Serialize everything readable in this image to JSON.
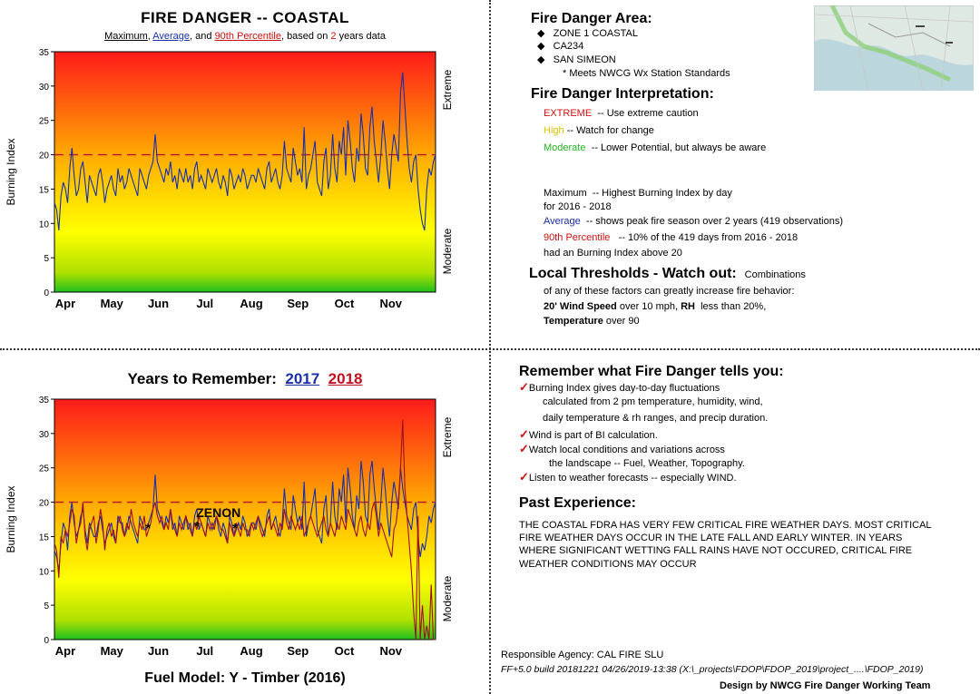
{
  "top_chart": {
    "title": "FIRE DANGER -- COASTAL",
    "subtitle_parts": [
      "Maximum",
      ", ",
      "Average",
      ", and ",
      "90th Percentile",
      ", based on ",
      "2",
      " years data"
    ],
    "ylabel": "Burning Index",
    "right_label_top": "Extreme",
    "right_label_bottom": "Moderate"
  },
  "bottom_chart": {
    "title": "Years to Remember:",
    "year1": "2017",
    "year2": "2018",
    "ylabel": "Burning Index",
    "right_label_top": "Extreme",
    "right_label_bottom": "Moderate",
    "annotation": "ZENON",
    "footer": "Fuel Model: Y - Timber (2016)"
  },
  "chart_data": [
    {
      "type": "line",
      "ylim": [
        0,
        35
      ],
      "yticks": [
        "0",
        "5",
        "10",
        "15",
        "20",
        "25",
        "30",
        "35"
      ],
      "months": [
        "Apr",
        "May",
        "Jun",
        "Jul",
        "Aug",
        "Sep",
        "Oct",
        "Nov"
      ],
      "threshold": 20,
      "series": [
        {
          "name": "Average",
          "color": "#1a2fa8",
          "values": [
            13,
            12,
            9,
            14,
            16,
            15,
            13,
            18,
            21,
            17,
            14,
            15,
            18,
            19,
            16,
            13,
            17,
            16,
            15,
            14,
            17,
            18,
            16,
            13,
            15,
            16,
            17,
            15,
            14,
            18,
            16,
            17,
            15,
            16,
            18,
            17,
            16,
            15,
            14,
            18,
            17,
            16,
            15,
            17,
            18,
            19,
            23,
            19,
            18,
            17,
            16,
            18,
            17,
            19,
            16,
            17,
            15,
            18,
            17,
            16,
            18,
            16,
            17,
            15,
            18,
            19,
            16,
            17,
            16,
            15,
            18,
            17,
            16,
            17,
            18,
            16,
            15,
            17,
            16,
            14,
            18,
            17,
            15,
            16,
            17,
            16,
            18,
            17,
            15,
            16,
            17,
            17,
            16,
            18,
            17,
            16,
            15,
            18,
            19,
            16,
            17,
            18,
            16,
            15,
            17,
            22,
            18,
            17,
            16,
            21,
            19,
            17,
            18,
            16,
            24,
            15,
            17,
            18,
            20,
            22,
            16,
            15,
            14,
            19,
            21,
            15,
            17,
            23,
            18,
            16,
            22,
            20,
            24,
            17,
            25,
            22,
            18,
            16,
            21,
            19,
            26,
            23,
            18,
            17,
            24,
            27,
            22,
            19,
            16,
            20,
            25,
            22,
            18,
            15,
            20,
            23,
            21,
            19,
            29,
            32,
            27,
            22,
            18,
            16,
            19,
            20,
            15,
            12,
            10,
            9,
            15,
            18,
            17,
            19,
            20
          ]
        }
      ]
    },
    {
      "type": "line",
      "ylim": [
        0,
        35
      ],
      "yticks": [
        "0",
        "5",
        "10",
        "15",
        "20",
        "25",
        "30",
        "35"
      ],
      "months": [
        "Apr",
        "May",
        "Jun",
        "Jul",
        "Aug",
        "Sep",
        "Oct",
        "Nov"
      ],
      "threshold": 20,
      "series": [
        {
          "name": "2017",
          "color": "#1a2fa8",
          "values": [
            13,
            12,
            10,
            14,
            17,
            16,
            13,
            18,
            20,
            17,
            15,
            16,
            18,
            19,
            16,
            14,
            17,
            16,
            15,
            15,
            17,
            18,
            16,
            14,
            15,
            16,
            17,
            15,
            14,
            18,
            17,
            17,
            15,
            16,
            18,
            17,
            16,
            15,
            14,
            18,
            17,
            16,
            16,
            17,
            18,
            19,
            24,
            19,
            18,
            17,
            16,
            18,
            17,
            19,
            16,
            17,
            15,
            18,
            17,
            16,
            18,
            16,
            17,
            15,
            18,
            19,
            16,
            17,
            16,
            15,
            18,
            17,
            16,
            17,
            18,
            16,
            15,
            17,
            16,
            14,
            18,
            17,
            15,
            16,
            17,
            16,
            18,
            17,
            15,
            16,
            17,
            17,
            16,
            18,
            17,
            16,
            15,
            18,
            19,
            16,
            17,
            18,
            16,
            15,
            17,
            22,
            18,
            17,
            16,
            21,
            19,
            17,
            18,
            16,
            23,
            15,
            17,
            18,
            20,
            22,
            16,
            15,
            14,
            19,
            21,
            15,
            17,
            23,
            18,
            16,
            22,
            20,
            24,
            17,
            25,
            22,
            18,
            16,
            21,
            19,
            26,
            23,
            18,
            17,
            24,
            26,
            22,
            19,
            16,
            20,
            25,
            22,
            18,
            15,
            20,
            23,
            21,
            19,
            25,
            22,
            20,
            18,
            17,
            16,
            19,
            20,
            15,
            12,
            14,
            13,
            15,
            18,
            17,
            19,
            20
          ]
        },
        {
          "name": "2018",
          "color": "#a01020",
          "values": [
            14,
            13,
            9,
            15,
            14,
            16,
            15,
            17,
            19,
            18,
            14,
            16,
            17,
            20,
            15,
            13,
            16,
            17,
            18,
            14,
            16,
            19,
            17,
            13,
            16,
            17,
            15,
            16,
            14,
            17,
            18,
            16,
            15,
            17,
            16,
            19,
            17,
            16,
            15,
            17,
            16,
            18,
            15,
            16,
            17,
            19,
            20,
            18,
            17,
            18,
            16,
            17,
            16,
            19,
            17,
            16,
            15,
            17,
            16,
            17,
            18,
            17,
            16,
            15,
            17,
            16,
            18,
            17,
            16,
            15,
            17,
            16,
            17,
            16,
            18,
            17,
            16,
            16,
            15,
            14,
            17,
            16,
            15,
            17,
            16,
            15,
            17,
            16,
            16,
            15,
            17,
            16,
            17,
            18,
            16,
            15,
            16,
            17,
            18,
            16,
            17,
            16,
            15,
            17,
            16,
            19,
            17,
            16,
            18,
            17,
            16,
            17,
            16,
            18,
            15,
            16,
            17,
            18,
            17,
            16,
            15,
            16,
            17,
            18,
            16,
            15,
            17,
            16,
            15,
            17,
            16,
            18,
            17,
            16,
            19,
            18,
            17,
            16,
            15,
            17,
            18,
            16,
            15,
            17,
            16,
            19,
            20,
            18,
            15,
            17,
            16,
            15,
            14,
            13,
            12,
            16,
            17,
            20,
            25,
            32,
            22,
            18,
            14,
            10,
            4,
            0,
            18,
            0,
            5,
            0,
            2,
            0,
            8,
            0,
            0
          ]
        }
      ]
    }
  ],
  "right_top": {
    "area_title": "Fire Danger Area:",
    "areas": [
      "ZONE 1 COASTAL",
      "CA234",
      "SAN SIMEON"
    ],
    "note": "* Meets NWCG Wx Station Standards",
    "interp_title": "Fire Danger Interpretation:",
    "extreme_label": "EXTREME",
    "extreme_text": "-- Use extreme caution",
    "high_label": "High",
    "high_text": "-- Watch for change",
    "moderate_label": "Moderate",
    "moderate_text": "-- Lower Potential, but always be aware",
    "max_label": "Maximum",
    "max_text": "-- Highest Burning Index by day",
    "max_text2": "for 2016 - 2018",
    "avg_label": "Average",
    "avg_text": "-- shows peak fire season over 2 years (419 observations)",
    "p90_label": "90th Percentile",
    "p90_text": "-- 10% of the 419 days from 2016 - 2018",
    "p90_text2": "had an Burning Index above 20",
    "thresholds_title": "Local Thresholds - Watch out:",
    "thresholds_suffix": "Combinations",
    "thr_line1": "of any of these factors can greatly increase fire behavior:",
    "thr_wind_bold": "20' Wind Speed",
    "thr_wind_text": "over 10 mph,",
    "thr_rh_bold": "RH",
    "thr_rh_text": "less than 20%,",
    "thr_temp_bold": "Temperature",
    "thr_temp_text": "over 90"
  },
  "right_bottom": {
    "remember_title": "Remember what Fire Danger tells you:",
    "bullets": [
      "Burning Index gives day-to-day fluctuations",
      "calculated from 2 pm temperature, humidity, wind,",
      "daily temperature & rh ranges, and precip duration.",
      "Wind is part of BI calculation.",
      "Watch local conditions and variations across",
      "the landscape -- Fuel, Weather, Topography.",
      "Listen to weather forecasts -- especially WIND."
    ],
    "past_title": "Past Experience:",
    "past_lines": [
      "THE COASTAL FDRA HAS VERY FEW CRITICAL FIRE WEATHER DAYS. MOST CRITICAL",
      "FIRE WEATHER DAYS OCCUR IN THE LATE FALL AND EARLY WINTER.  IN YEARS",
      "WHERE SIGNIFICANT WETTING FALL RAINS HAVE NOT OCCURED, CRITICAL FIRE",
      "WEATHER CONDITIONS MAY OCCUR"
    ],
    "agency": "Responsible Agency: CAL FIRE SLU",
    "build": "FF+5.0 build 20181221 04/26/2019-13:38 (X:\\_projects\\FDOP\\FDOP_2019\\project_....\\FDOP_2019)",
    "design": "Design by NWCG Fire Danger Working Team"
  }
}
